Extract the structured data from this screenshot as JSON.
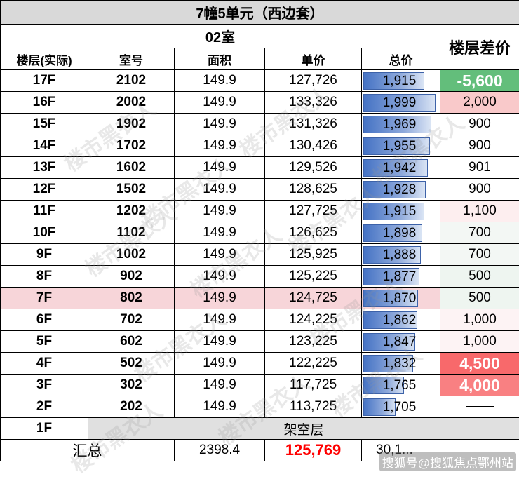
{
  "title": "7幢5单元（西边套）",
  "room_type": "02室",
  "headers": {
    "floor": "楼层(实际)",
    "room_no": "室号",
    "area": "面积",
    "unit_price": "单价",
    "total_price": "总价",
    "floor_diff": "楼层差价"
  },
  "colors": {
    "title_bg": "#d9d9d9",
    "highlight_row": "#f7d5d9",
    "diff_green": "#63be7b",
    "diff_red_strong": "#f8696b",
    "bar_blue": "#4472c4",
    "total_red": "#ff0000"
  },
  "rows": [
    {
      "floor": "17F",
      "room": "2102",
      "area": "149.9",
      "unit_price": "127,726",
      "total": "1,915",
      "total_value": 1915,
      "diff": "-5,600",
      "diff_style": "green-bold",
      "diff_bg": "#63be7b"
    },
    {
      "floor": "16F",
      "room": "2002",
      "area": "149.9",
      "unit_price": "133,326",
      "total": "1,999",
      "total_value": 1999,
      "diff": "2,000",
      "diff_style": "normal",
      "diff_bg": "#f9c9ca"
    },
    {
      "floor": "15F",
      "room": "1902",
      "area": "149.9",
      "unit_price": "131,326",
      "total": "1,969",
      "total_value": 1969,
      "diff": "900",
      "diff_style": "normal",
      "diff_bg": "#ffffff"
    },
    {
      "floor": "14F",
      "room": "1702",
      "area": "149.9",
      "unit_price": "130,426",
      "total": "1,955",
      "total_value": 1955,
      "diff": "900",
      "diff_style": "normal",
      "diff_bg": "#ffffff"
    },
    {
      "floor": "13F",
      "room": "1602",
      "area": "149.9",
      "unit_price": "129,526",
      "total": "1,942",
      "total_value": 1942,
      "diff": "901",
      "diff_style": "normal",
      "diff_bg": "#ffffff"
    },
    {
      "floor": "12F",
      "room": "1502",
      "area": "149.9",
      "unit_price": "128,625",
      "total": "1,928",
      "total_value": 1928,
      "diff": "900",
      "diff_style": "normal",
      "diff_bg": "#ffffff"
    },
    {
      "floor": "11F",
      "room": "1202",
      "area": "149.9",
      "unit_price": "127,725",
      "total": "1,915",
      "total_value": 1915,
      "diff": "1,100",
      "diff_style": "normal",
      "diff_bg": "#fdeeef"
    },
    {
      "floor": "10F",
      "room": "1102",
      "area": "149.9",
      "unit_price": "126,625",
      "total": "1,898",
      "total_value": 1898,
      "diff": "700",
      "diff_style": "normal",
      "diff_bg": "#f3f7f4"
    },
    {
      "floor": "9F",
      "room": "1002",
      "area": "149.9",
      "unit_price": "125,925",
      "total": "1,888",
      "total_value": 1888,
      "diff": "700",
      "diff_style": "normal",
      "diff_bg": "#f3f7f4"
    },
    {
      "floor": "8F",
      "room": "902",
      "area": "149.9",
      "unit_price": "125,225",
      "total": "1,877",
      "total_value": 1877,
      "diff": "500",
      "diff_style": "normal",
      "diff_bg": "#eef5f0"
    },
    {
      "floor": "7F",
      "room": "802",
      "area": "149.9",
      "unit_price": "124,725",
      "total": "1,870",
      "total_value": 1870,
      "diff": "500",
      "diff_style": "normal",
      "diff_bg": "#eef5f0",
      "highlight": true
    },
    {
      "floor": "6F",
      "room": "702",
      "area": "149.9",
      "unit_price": "124,225",
      "total": "1,862",
      "total_value": 1862,
      "diff": "1,000",
      "diff_style": "normal",
      "diff_bg": "#fdf3f4"
    },
    {
      "floor": "5F",
      "room": "602",
      "area": "149.9",
      "unit_price": "123,225",
      "total": "1,847",
      "total_value": 1847,
      "diff": "1,000",
      "diff_style": "normal",
      "diff_bg": "#fdf3f4"
    },
    {
      "floor": "4F",
      "room": "502",
      "area": "149.9",
      "unit_price": "122,225",
      "total": "1,832",
      "total_value": 1832,
      "diff": "4,500",
      "diff_style": "red-bold",
      "diff_bg": "#f8696b"
    },
    {
      "floor": "3F",
      "room": "302",
      "area": "149.9",
      "unit_price": "117,725",
      "total": "1,765",
      "total_value": 1765,
      "diff": "4,000",
      "diff_style": "red-bold",
      "diff_bg": "#f98082"
    },
    {
      "floor": "2F",
      "room": "202",
      "area": "149.9",
      "unit_price": "113,725",
      "total": "1,705",
      "total_value": 1705,
      "diff": "——",
      "diff_style": "dash",
      "diff_bg": "#ffffff"
    }
  ],
  "piloti_row": {
    "floor": "1F",
    "label": "架空层"
  },
  "summary": {
    "label": "汇总",
    "area": "2398.4",
    "unit_price": "125,769",
    "total": "30,1..."
  },
  "watermark_text": "楼市黑衣人",
  "footer_watermark": "搜狐号@搜狐焦点鄂州站"
}
